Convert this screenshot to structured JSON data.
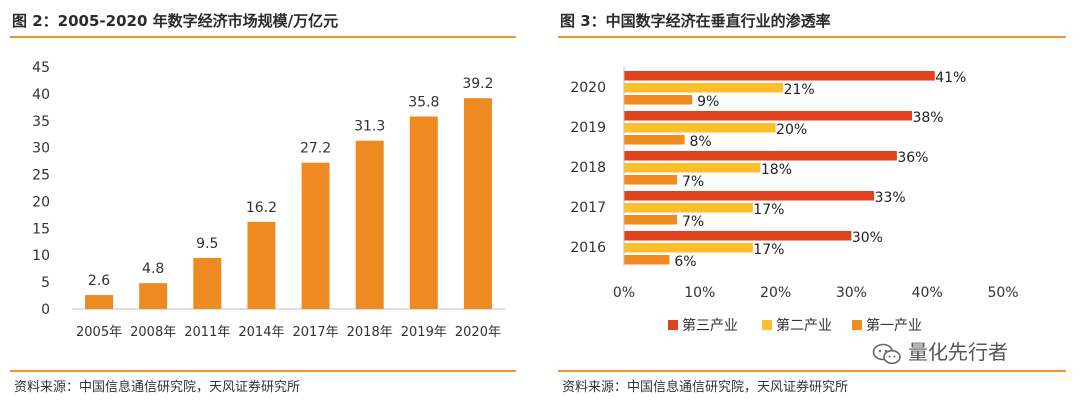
{
  "colors": {
    "accent": "#f0932b",
    "bar_left": "#ee8a22",
    "tertiary": "#e0421d",
    "secondary": "#ffbf2a",
    "primary": "#f08a21"
  },
  "left": {
    "title": "图 2：2005-2020 年数字经济市场规模/万亿元",
    "source": "资料来源：中国信息通信研究院，天风证券研究所"
  },
  "right": {
    "title": "图 3：中国数字经济在垂直行业的渗透率",
    "source": "资料来源：中国信息通信研究院，天风证券研究所"
  },
  "watermark": {
    "text": "量化先行者",
    "icon": "wechat-icon"
  },
  "chart_data": [
    {
      "type": "bar",
      "title": "图 2：2005-2020 年数字经济市场规模/万亿元",
      "categories": [
        "2005年",
        "2008年",
        "2011年",
        "2014年",
        "2017年",
        "2018年",
        "2019年",
        "2020年"
      ],
      "values": [
        2.6,
        4.8,
        9.5,
        16.2,
        27.2,
        31.3,
        35.8,
        39.2
      ],
      "value_labels": [
        "2.6",
        "4.8",
        "9.5",
        "16.2",
        "27.2",
        "31.3",
        "35.8",
        "39.2"
      ],
      "ylim": [
        0,
        45
      ],
      "yticks": [
        "0",
        "5",
        "10",
        "15",
        "20",
        "25",
        "30",
        "35",
        "40",
        "45"
      ],
      "xlabel": "",
      "ylabel": "",
      "grid": false
    },
    {
      "type": "bar",
      "orientation": "horizontal",
      "title": "图 3：中国数字经济在垂直行业的渗透率",
      "categories": [
        "2020",
        "2019",
        "2018",
        "2017",
        "2016"
      ],
      "series": [
        {
          "name": "第三产业",
          "values": [
            41,
            38,
            36,
            33,
            30
          ],
          "labels": [
            "41%",
            "38%",
            "36%",
            "33%",
            "30%"
          ]
        },
        {
          "name": "第二产业",
          "values": [
            21,
            20,
            18,
            17,
            17
          ],
          "labels": [
            "21%",
            "20%",
            "18%",
            "17%",
            "17%"
          ]
        },
        {
          "name": "第一产业",
          "values": [
            9,
            8,
            7,
            7,
            6
          ],
          "labels": [
            "9%",
            "8%",
            "7%",
            "7%",
            "6%"
          ]
        }
      ],
      "xlim": [
        0,
        50
      ],
      "xticks": [
        "0%",
        "10%",
        "20%",
        "30%",
        "40%",
        "50%"
      ],
      "legend": {
        "position": "bottom",
        "items": [
          "第三产业",
          "第二产业",
          "第一产业"
        ]
      },
      "grid": false
    }
  ]
}
